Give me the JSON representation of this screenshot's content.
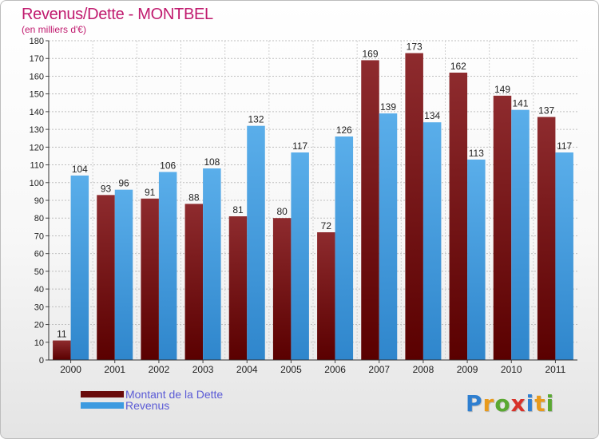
{
  "chart_data": {
    "type": "bar",
    "title": "Revenus/Dette - MONTBEL",
    "subtitle": "(en milliers d'€)",
    "categories": [
      "2000",
      "2001",
      "2002",
      "2003",
      "2004",
      "2005",
      "2006",
      "2007",
      "2008",
      "2009",
      "2010",
      "2011"
    ],
    "series": [
      {
        "name": "Montant de la Dette",
        "color": "#7b1f22",
        "values": [
          11,
          93,
          91,
          88,
          81,
          80,
          72,
          169,
          173,
          162,
          149,
          137
        ]
      },
      {
        "name": "Revenus",
        "color": "#4aa2e6",
        "values": [
          104,
          96,
          106,
          108,
          132,
          117,
          126,
          139,
          134,
          113,
          141,
          117
        ]
      }
    ],
    "ylim": [
      0,
      180
    ],
    "ytick_step": 10,
    "grid": true,
    "legend_position": "bottom-left"
  },
  "logo_text": "Proxiti"
}
